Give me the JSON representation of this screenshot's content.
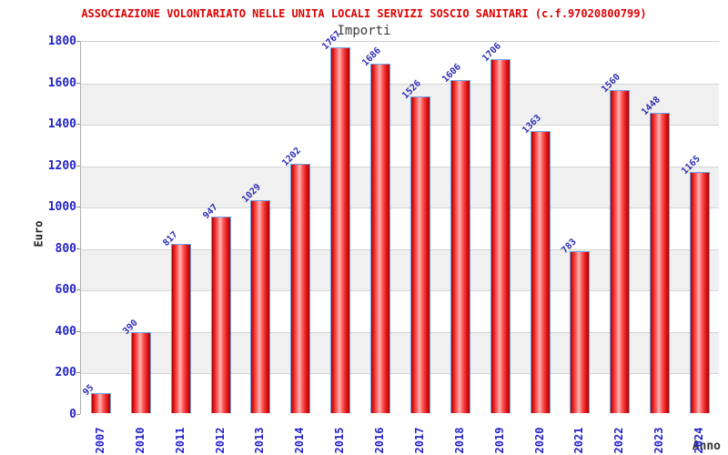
{
  "header": {
    "title": "ASSOCIAZIONE VOLONTARIATO NELLE UNITA LOCALI SERVIZI SOSCIO SANITARI (c.f.97020800799)",
    "subtitle": "Importi"
  },
  "chart_data": {
    "type": "bar",
    "title": "ASSOCIAZIONE VOLONTARIATO NELLE UNITA LOCALI SERVIZI SOSCIO SANITARI (c.f.97020800799)",
    "subtitle": "Importi",
    "xlabel": "Anno",
    "ylabel": "Euro",
    "categories": [
      "2007",
      "2010",
      "2011",
      "2012",
      "2013",
      "2014",
      "2015",
      "2016",
      "2017",
      "2018",
      "2019",
      "2020",
      "2021",
      "2022",
      "2023",
      "2024"
    ],
    "values": [
      95,
      390,
      817,
      947,
      1029,
      1202,
      1767,
      1686,
      1526,
      1606,
      1706,
      1363,
      783,
      1560,
      1448,
      1165
    ],
    "ylim": [
      0,
      1800
    ],
    "yticks": [
      0,
      200,
      400,
      600,
      800,
      1000,
      1200,
      1400,
      1600,
      1800
    ],
    "grid": true,
    "background_bands": "alternating white and light gray every 200 units",
    "legend": "none"
  },
  "colors": {
    "title_text": "#dd0000",
    "subtitle_text": "#3a3a3a",
    "tick_text": "#2222cc",
    "value_label_text": "#2d2db2",
    "axis_title_text": "#222222",
    "bar_fill_main": "#e41b1b",
    "bar_fill_highlight": "#ffb8b8",
    "bar_border": "#6aa2e8",
    "band_gray": "#f0f0f0",
    "band_white": "#ffffff",
    "gridline": "#d4d4d4"
  }
}
